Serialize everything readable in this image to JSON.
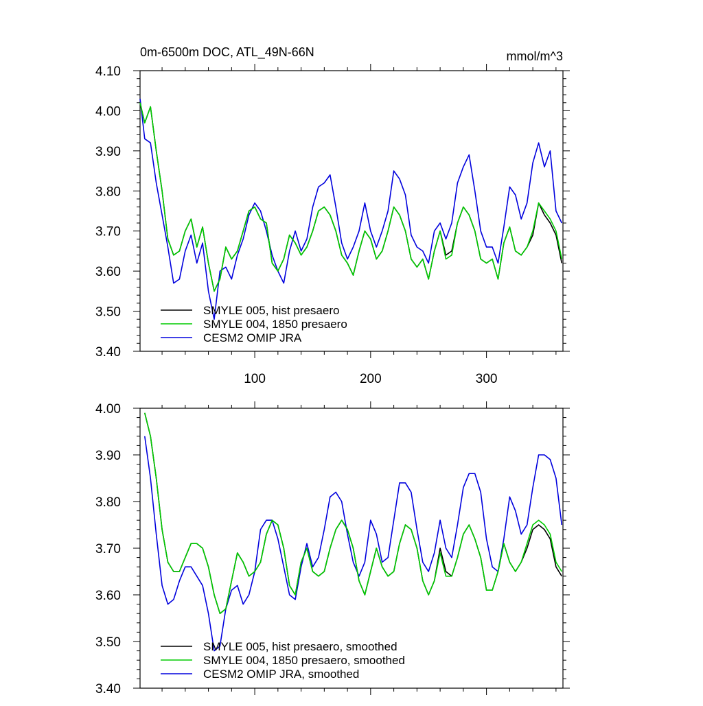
{
  "chart_data": [
    {
      "type": "line",
      "title": "0m-6500m DOC, ATL_49N-66N",
      "units": "mmol/m^3",
      "xlabel": "",
      "ylabel": "",
      "xlim": [
        1,
        366
      ],
      "ylim": [
        3.4,
        4.1
      ],
      "x_ticks": [
        100,
        200,
        300
      ],
      "x_tick_labels": [
        "100",
        "200",
        "300"
      ],
      "y_ticks": [
        3.4,
        3.5,
        3.6,
        3.7,
        3.8,
        3.9,
        4.0,
        4.1
      ],
      "y_tick_labels": [
        "3.40",
        "3.50",
        "3.60",
        "3.70",
        "3.80",
        "3.90",
        "4.00",
        "4.10"
      ],
      "grid": false,
      "legend_position": "bottom-left",
      "series": [
        {
          "name": "SMYLE 005, hist presaero",
          "color": "#000000",
          "x": [
            1,
            5,
            10,
            15,
            20,
            25,
            30,
            35,
            40,
            45,
            50,
            55,
            60,
            65,
            70,
            75,
            80,
            85,
            90,
            95,
            100,
            105,
            110,
            115,
            120,
            125,
            130,
            135,
            140,
            145,
            150,
            155,
            160,
            165,
            170,
            175,
            180,
            185,
            190,
            195,
            200,
            205,
            210,
            215,
            220,
            225,
            230,
            235,
            240,
            245,
            250,
            255,
            260,
            265,
            270,
            275,
            280,
            285,
            290,
            295,
            300,
            305,
            310,
            315,
            320,
            325,
            330,
            335,
            340,
            345,
            350,
            355,
            360,
            365
          ],
          "values": [
            4.02,
            3.97,
            4.01,
            3.9,
            3.8,
            3.68,
            3.64,
            3.65,
            3.7,
            3.73,
            3.66,
            3.71,
            3.62,
            3.55,
            3.58,
            3.66,
            3.63,
            3.65,
            3.7,
            3.75,
            3.76,
            3.73,
            3.72,
            3.62,
            3.6,
            3.63,
            3.69,
            3.67,
            3.64,
            3.66,
            3.7,
            3.75,
            3.76,
            3.74,
            3.7,
            3.64,
            3.62,
            3.59,
            3.65,
            3.7,
            3.68,
            3.63,
            3.65,
            3.7,
            3.76,
            3.74,
            3.7,
            3.63,
            3.61,
            3.63,
            3.58,
            3.65,
            3.7,
            3.64,
            3.65,
            3.72,
            3.76,
            3.74,
            3.7,
            3.63,
            3.62,
            3.63,
            3.58,
            3.67,
            3.71,
            3.65,
            3.64,
            3.66,
            3.69,
            3.77,
            3.74,
            3.72,
            3.69,
            3.62
          ]
        },
        {
          "name": "SMYLE 004, 1850 presaero",
          "color": "#00cc00",
          "x": [
            1,
            5,
            10,
            15,
            20,
            25,
            30,
            35,
            40,
            45,
            50,
            55,
            60,
            65,
            70,
            75,
            80,
            85,
            90,
            95,
            100,
            105,
            110,
            115,
            120,
            125,
            130,
            135,
            140,
            145,
            150,
            155,
            160,
            165,
            170,
            175,
            180,
            185,
            190,
            195,
            200,
            205,
            210,
            215,
            220,
            225,
            230,
            235,
            240,
            245,
            250,
            255,
            260,
            265,
            270,
            275,
            280,
            285,
            290,
            295,
            300,
            305,
            310,
            315,
            320,
            325,
            330,
            335,
            340,
            345,
            350,
            355,
            360,
            365
          ],
          "values": [
            4.02,
            3.97,
            4.01,
            3.9,
            3.8,
            3.68,
            3.64,
            3.65,
            3.7,
            3.73,
            3.66,
            3.71,
            3.62,
            3.55,
            3.58,
            3.66,
            3.63,
            3.65,
            3.7,
            3.75,
            3.76,
            3.73,
            3.72,
            3.62,
            3.6,
            3.63,
            3.69,
            3.67,
            3.64,
            3.66,
            3.7,
            3.75,
            3.76,
            3.74,
            3.7,
            3.64,
            3.62,
            3.59,
            3.65,
            3.7,
            3.68,
            3.63,
            3.65,
            3.7,
            3.76,
            3.74,
            3.7,
            3.63,
            3.61,
            3.63,
            3.58,
            3.65,
            3.7,
            3.63,
            3.64,
            3.72,
            3.76,
            3.74,
            3.7,
            3.63,
            3.62,
            3.63,
            3.58,
            3.67,
            3.71,
            3.65,
            3.64,
            3.66,
            3.7,
            3.77,
            3.75,
            3.73,
            3.7,
            3.63
          ]
        },
        {
          "name": "CESM2 OMIP JRA",
          "color": "#0000dd",
          "x": [
            1,
            5,
            10,
            15,
            20,
            25,
            30,
            35,
            40,
            45,
            50,
            55,
            60,
            65,
            70,
            75,
            80,
            85,
            90,
            95,
            100,
            105,
            110,
            115,
            120,
            125,
            130,
            135,
            140,
            145,
            150,
            155,
            160,
            165,
            170,
            175,
            180,
            185,
            190,
            195,
            200,
            205,
            210,
            215,
            220,
            225,
            230,
            235,
            240,
            245,
            250,
            255,
            260,
            265,
            270,
            275,
            280,
            285,
            290,
            295,
            300,
            305,
            310,
            315,
            320,
            325,
            330,
            335,
            340,
            345,
            350,
            355,
            360,
            365
          ],
          "values": [
            4.03,
            3.93,
            3.92,
            3.82,
            3.74,
            3.66,
            3.57,
            3.58,
            3.65,
            3.69,
            3.62,
            3.67,
            3.55,
            3.48,
            3.6,
            3.61,
            3.58,
            3.64,
            3.68,
            3.74,
            3.77,
            3.75,
            3.7,
            3.64,
            3.6,
            3.57,
            3.65,
            3.7,
            3.65,
            3.68,
            3.76,
            3.81,
            3.82,
            3.84,
            3.76,
            3.67,
            3.63,
            3.66,
            3.7,
            3.77,
            3.7,
            3.66,
            3.7,
            3.75,
            3.85,
            3.83,
            3.79,
            3.69,
            3.66,
            3.65,
            3.62,
            3.7,
            3.72,
            3.68,
            3.72,
            3.82,
            3.86,
            3.89,
            3.8,
            3.7,
            3.66,
            3.66,
            3.62,
            3.71,
            3.81,
            3.79,
            3.73,
            3.77,
            3.87,
            3.92,
            3.86,
            3.9,
            3.75,
            3.72
          ]
        }
      ]
    },
    {
      "type": "line",
      "title": "",
      "xlabel": "",
      "ylabel": "",
      "xlim": [
        1,
        366
      ],
      "ylim": [
        3.4,
        4.0
      ],
      "x_ticks": [
        100,
        200,
        300
      ],
      "x_tick_labels": [],
      "y_ticks": [
        3.4,
        3.5,
        3.6,
        3.7,
        3.8,
        3.9,
        4.0
      ],
      "y_tick_labels": [
        "3.40",
        "3.50",
        "3.60",
        "3.70",
        "3.80",
        "3.90",
        "4.00"
      ],
      "grid": false,
      "legend_position": "bottom-left",
      "series": [
        {
          "name": "SMYLE 005, hist presaero, smoothed",
          "color": "#000000",
          "x": [
            5,
            10,
            15,
            20,
            25,
            30,
            35,
            40,
            45,
            50,
            55,
            60,
            65,
            70,
            75,
            80,
            85,
            90,
            95,
            100,
            105,
            110,
            115,
            120,
            125,
            130,
            135,
            140,
            145,
            150,
            155,
            160,
            165,
            170,
            175,
            180,
            185,
            190,
            195,
            200,
            205,
            210,
            215,
            220,
            225,
            230,
            235,
            240,
            245,
            250,
            255,
            260,
            265,
            270,
            275,
            280,
            285,
            290,
            295,
            300,
            305,
            310,
            315,
            320,
            325,
            330,
            335,
            340,
            345,
            350,
            355,
            360,
            365
          ],
          "values": [
            3.99,
            3.94,
            3.85,
            3.74,
            3.67,
            3.65,
            3.65,
            3.68,
            3.71,
            3.71,
            3.7,
            3.66,
            3.6,
            3.56,
            3.57,
            3.63,
            3.69,
            3.67,
            3.64,
            3.65,
            3.67,
            3.73,
            3.76,
            3.75,
            3.7,
            3.62,
            3.6,
            3.67,
            3.7,
            3.65,
            3.64,
            3.65,
            3.7,
            3.74,
            3.76,
            3.74,
            3.7,
            3.63,
            3.6,
            3.65,
            3.7,
            3.66,
            3.64,
            3.65,
            3.71,
            3.75,
            3.74,
            3.7,
            3.63,
            3.6,
            3.63,
            3.7,
            3.65,
            3.64,
            3.68,
            3.73,
            3.75,
            3.72,
            3.68,
            3.61,
            3.61,
            3.65,
            3.71,
            3.67,
            3.65,
            3.67,
            3.7,
            3.74,
            3.75,
            3.74,
            3.72,
            3.66,
            3.64
          ]
        },
        {
          "name": "SMYLE 004, 1850 presaero, smoothed",
          "color": "#00cc00",
          "x": [
            5,
            10,
            15,
            20,
            25,
            30,
            35,
            40,
            45,
            50,
            55,
            60,
            65,
            70,
            75,
            80,
            85,
            90,
            95,
            100,
            105,
            110,
            115,
            120,
            125,
            130,
            135,
            140,
            145,
            150,
            155,
            160,
            165,
            170,
            175,
            180,
            185,
            190,
            195,
            200,
            205,
            210,
            215,
            220,
            225,
            230,
            235,
            240,
            245,
            250,
            255,
            260,
            265,
            270,
            275,
            280,
            285,
            290,
            295,
            300,
            305,
            310,
            315,
            320,
            325,
            330,
            335,
            340,
            345,
            350,
            355,
            360,
            365
          ],
          "values": [
            3.99,
            3.94,
            3.85,
            3.74,
            3.67,
            3.65,
            3.65,
            3.68,
            3.71,
            3.71,
            3.7,
            3.66,
            3.6,
            3.56,
            3.57,
            3.63,
            3.69,
            3.67,
            3.64,
            3.65,
            3.67,
            3.73,
            3.76,
            3.75,
            3.7,
            3.62,
            3.6,
            3.67,
            3.7,
            3.65,
            3.64,
            3.65,
            3.7,
            3.74,
            3.76,
            3.74,
            3.7,
            3.63,
            3.6,
            3.65,
            3.7,
            3.66,
            3.64,
            3.65,
            3.71,
            3.75,
            3.74,
            3.7,
            3.63,
            3.6,
            3.63,
            3.69,
            3.64,
            3.64,
            3.68,
            3.73,
            3.75,
            3.72,
            3.68,
            3.61,
            3.61,
            3.65,
            3.71,
            3.67,
            3.65,
            3.67,
            3.71,
            3.75,
            3.76,
            3.75,
            3.73,
            3.67,
            3.65
          ]
        },
        {
          "name": "CESM2 OMIP JRA, smoothed",
          "color": "#0000dd",
          "x": [
            5,
            10,
            15,
            20,
            25,
            30,
            35,
            40,
            45,
            50,
            55,
            60,
            65,
            70,
            75,
            80,
            85,
            90,
            95,
            100,
            105,
            110,
            115,
            120,
            125,
            130,
            135,
            140,
            145,
            150,
            155,
            160,
            165,
            170,
            175,
            180,
            185,
            190,
            195,
            200,
            205,
            210,
            215,
            220,
            225,
            230,
            235,
            240,
            245,
            250,
            255,
            260,
            265,
            270,
            275,
            280,
            285,
            290,
            295,
            300,
            305,
            310,
            315,
            320,
            325,
            330,
            335,
            340,
            345,
            350,
            355,
            360,
            365
          ],
          "values": [
            3.94,
            3.85,
            3.73,
            3.62,
            3.58,
            3.59,
            3.63,
            3.66,
            3.66,
            3.64,
            3.62,
            3.56,
            3.48,
            3.49,
            3.57,
            3.61,
            3.62,
            3.58,
            3.6,
            3.65,
            3.74,
            3.76,
            3.76,
            3.72,
            3.66,
            3.6,
            3.59,
            3.66,
            3.71,
            3.66,
            3.68,
            3.74,
            3.81,
            3.82,
            3.8,
            3.73,
            3.67,
            3.64,
            3.67,
            3.76,
            3.73,
            3.67,
            3.68,
            3.76,
            3.84,
            3.84,
            3.82,
            3.74,
            3.67,
            3.65,
            3.69,
            3.76,
            3.7,
            3.68,
            3.75,
            3.83,
            3.86,
            3.86,
            3.82,
            3.72,
            3.66,
            3.65,
            3.72,
            3.81,
            3.78,
            3.73,
            3.75,
            3.83,
            3.9,
            3.9,
            3.89,
            3.85,
            3.75
          ]
        }
      ]
    }
  ]
}
